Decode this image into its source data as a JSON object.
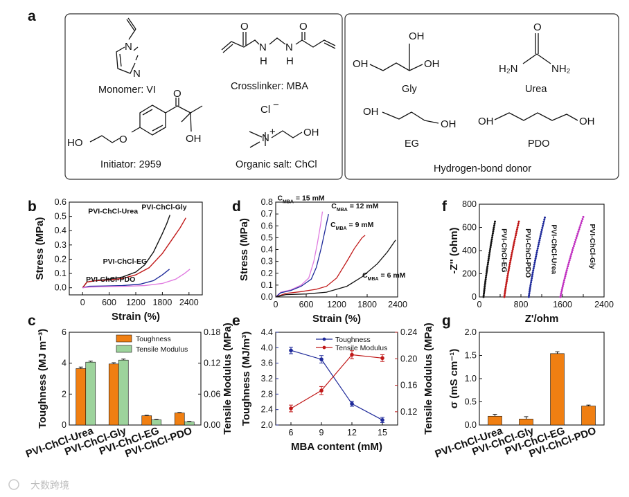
{
  "panels": {
    "a": "a",
    "b": "b",
    "c": "c",
    "d": "d",
    "e": "e",
    "f": "f",
    "g": "g"
  },
  "panel_a": {
    "left_captions": {
      "monomer": "Monomer: VI",
      "crosslinker": "Crosslinker: MBA",
      "initiator": "Initiator: 2959",
      "salt": "Organic salt: ChCl"
    },
    "right_captions": {
      "gly": "Gly",
      "urea": "Urea",
      "eg": "EG",
      "pdo": "PDO",
      "box_title": "Hydrogen-bond donor"
    },
    "atoms": {
      "N": "N",
      "H": "H",
      "O": "O",
      "OH": "OH",
      "HO": "HO",
      "H2N": "H₂N",
      "NH2": "NH₂",
      "Cl": "Cl",
      "minus": "−",
      "plus": "+"
    }
  },
  "watermark": "大数跨境",
  "chart_data": [
    {
      "id": "b",
      "type": "line",
      "xlabel": "Strain (%)",
      "ylabel": "Stress (MPa)",
      "xlim": [
        -300,
        2700
      ],
      "ylim": [
        -0.05,
        0.6
      ],
      "xticks": [
        0,
        600,
        1200,
        1800,
        2400
      ],
      "yticks": [
        0.0,
        0.1,
        0.2,
        0.3,
        0.4,
        0.5,
        0.6
      ],
      "series": [
        {
          "name": "PVI-ChCl-Urea",
          "color": "#111111",
          "label_pos": "left",
          "x": [
            0,
            100,
            300,
            600,
            900,
            1200,
            1400,
            1600,
            1800,
            1900,
            1970
          ],
          "y": [
            0.0,
            0.04,
            0.05,
            0.06,
            0.075,
            0.11,
            0.16,
            0.25,
            0.38,
            0.45,
            0.51
          ]
        },
        {
          "name": "PVI-ChCl-Gly",
          "color": "#c01818",
          "label_pos": "top-right",
          "x": [
            0,
            100,
            300,
            600,
            900,
            1200,
            1500,
            1800,
            2000,
            2200,
            2330
          ],
          "y": [
            0.0,
            0.04,
            0.05,
            0.055,
            0.065,
            0.09,
            0.14,
            0.24,
            0.33,
            0.42,
            0.49
          ]
        },
        {
          "name": "PVI-ChCl-EG",
          "color": "#1f2a9a",
          "label_pos": "right",
          "x": [
            0,
            150,
            500,
            900,
            1300,
            1600,
            1800,
            1960
          ],
          "y": [
            0.0,
            0.01,
            0.012,
            0.015,
            0.025,
            0.05,
            0.09,
            0.13
          ]
        },
        {
          "name": "PVI-ChCl-PDO",
          "color": "#e07be0",
          "label_pos": "bottom-right",
          "x": [
            0,
            150,
            600,
            1000,
            1400,
            1800,
            2100,
            2300,
            2420
          ],
          "y": [
            0.0,
            0.005,
            0.008,
            0.01,
            0.015,
            0.03,
            0.06,
            0.1,
            0.13
          ]
        }
      ]
    },
    {
      "id": "c",
      "type": "bar",
      "ylabel": "Toughness (MJ m⁻³)",
      "ylabel_right": "Tensile Modulus (MPa)",
      "ylim": [
        0,
        6
      ],
      "ylim_right": [
        0,
        0.18
      ],
      "yticks": [
        0,
        2,
        4,
        6
      ],
      "yticks_right": [
        "0.00",
        "0.06",
        "0.12",
        "0.18"
      ],
      "categories": [
        "PVI-ChCl-Urea",
        "PVI-ChCl-Gly",
        "PVI-ChCl-EG",
        "PVI-ChCl-PDO"
      ],
      "series": [
        {
          "name": "Toughness",
          "axis": "left",
          "color": "#f07f12",
          "values": [
            3.65,
            3.95,
            0.6,
            0.78
          ],
          "errors": [
            0.1,
            0.08,
            0.03,
            0.03
          ]
        },
        {
          "name": "Tensile Modulus",
          "axis": "right",
          "color": "#9dd39c",
          "values": [
            0.122,
            0.126,
            0.01,
            0.006
          ],
          "errors": [
            0.002,
            0.002,
            0.001,
            0.001
          ]
        }
      ],
      "legend": "top-right"
    },
    {
      "id": "d",
      "type": "line",
      "xlabel": "Strain (%)",
      "ylabel": "Stress (MPa)",
      "xlim": [
        0,
        2400
      ],
      "ylim": [
        0,
        0.8
      ],
      "xticks": [
        0,
        600,
        1200,
        1800,
        2400
      ],
      "yticks": [
        0.0,
        0.1,
        0.2,
        0.3,
        0.4,
        0.5,
        0.6,
        0.7,
        0.8
      ],
      "series": [
        {
          "name": "C",
          "sub": "MBA",
          "suffix": "= 15 mM",
          "color": "#e07be0",
          "label_pos": "top-left",
          "x": [
            0,
            100,
            300,
            500,
            650,
            750,
            820,
            880,
            920
          ],
          "y": [
            0.0,
            0.04,
            0.06,
            0.1,
            0.16,
            0.3,
            0.45,
            0.6,
            0.72
          ]
        },
        {
          "name": "C",
          "sub": "MBA",
          "suffix": "= 12 mM",
          "color": "#1f2a9a",
          "label_pos": "top",
          "x": [
            0,
            100,
            300,
            500,
            700,
            800,
            900,
            980,
            1040
          ],
          "y": [
            0.0,
            0.035,
            0.055,
            0.09,
            0.15,
            0.25,
            0.42,
            0.58,
            0.7
          ]
        },
        {
          "name": "C",
          "sub": "MBA",
          "suffix": "= 9 mM",
          "color": "#c01818",
          "label_pos": "top-right",
          "x": [
            0,
            200,
            500,
            800,
            1000,
            1200,
            1400,
            1550,
            1700,
            1760
          ],
          "y": [
            0.0,
            0.03,
            0.045,
            0.065,
            0.09,
            0.16,
            0.3,
            0.41,
            0.5,
            0.52
          ]
        },
        {
          "name": "C",
          "sub": "MBA",
          "suffix": "= 6 mM",
          "color": "#111111",
          "label_pos": "bottom-right",
          "x": [
            0,
            200,
            600,
            1000,
            1400,
            1700,
            2000,
            2200,
            2360
          ],
          "y": [
            0.0,
            0.02,
            0.025,
            0.04,
            0.09,
            0.17,
            0.28,
            0.38,
            0.48
          ]
        }
      ]
    },
    {
      "id": "e",
      "type": "line",
      "xlabel": "MBA content (mM)",
      "ylabel": "Toughness (MJ/m³)",
      "ylabel_right": "Tensile Modulus (MPa)",
      "x": [
        6,
        9,
        12,
        15
      ],
      "xlim": [
        4.5,
        16.5
      ],
      "ylim": [
        2.0,
        4.4
      ],
      "ylim_right": [
        0.1,
        0.24
      ],
      "yticks": [
        "2.0",
        "2.4",
        "2.8",
        "3.2",
        "3.6",
        "4.0",
        "4.4"
      ],
      "yticks_right": [
        "0.12",
        "0.16",
        "0.20",
        "0.24"
      ],
      "xticks": [
        6,
        9,
        12,
        15
      ],
      "series": [
        {
          "name": "Toughness",
          "axis": "left",
          "color": "#1f2a9a",
          "values": [
            3.93,
            3.7,
            2.55,
            2.13
          ],
          "errors": [
            0.05,
            0.06,
            0.03,
            0.03
          ]
        },
        {
          "name": "Tensile Modulus",
          "axis": "right",
          "color": "#c01818",
          "values": [
            0.125,
            0.152,
            0.206,
            0.201
          ],
          "errors": [
            0.003,
            0.004,
            0.004,
            0.003
          ]
        }
      ],
      "legend": "top-right"
    },
    {
      "id": "f",
      "type": "scatter",
      "xlabel": "Z'/ohm",
      "ylabel": "-Z'' (ohm)",
      "xlim": [
        0,
        2400
      ],
      "ylim": [
        0,
        800
      ],
      "xticks": [
        0,
        400,
        800,
        1200,
        1600,
        2000,
        2400
      ],
      "yticks": [
        0,
        200,
        400,
        600,
        800
      ],
      "series": [
        {
          "name": "PVI-ChCl-EG",
          "color": "#111111",
          "x_start": 80,
          "x_end": 300,
          "y_max": 650
        },
        {
          "name": "PVI-ChCl-PDO",
          "color": "#c01818",
          "x_start": 480,
          "x_end": 760,
          "y_max": 650
        },
        {
          "name": "PVI-ChCl-Urea",
          "color": "#1f2a9a",
          "x_start": 950,
          "x_end": 1260,
          "y_max": 685
        },
        {
          "name": "PVI-ChCl-Gly",
          "color": "#c030c0",
          "x_start": 1560,
          "x_end": 2000,
          "y_max": 690
        }
      ]
    },
    {
      "id": "g",
      "type": "bar",
      "ylabel": "σ (mS cm⁻¹)",
      "ylim": [
        0,
        2.0
      ],
      "yticks": [
        "0.0",
        "0.5",
        "1.0",
        "1.5",
        "2.0"
      ],
      "categories": [
        "PVI-ChCl-Urea",
        "PVI-ChCl-Gly",
        "PVI-ChCl-EG",
        "PVI-ChCl-PDO"
      ],
      "values": [
        0.19,
        0.13,
        1.54,
        0.41
      ],
      "errors": [
        0.04,
        0.05,
        0.04,
        0.02
      ],
      "color": "#f07f12"
    }
  ]
}
